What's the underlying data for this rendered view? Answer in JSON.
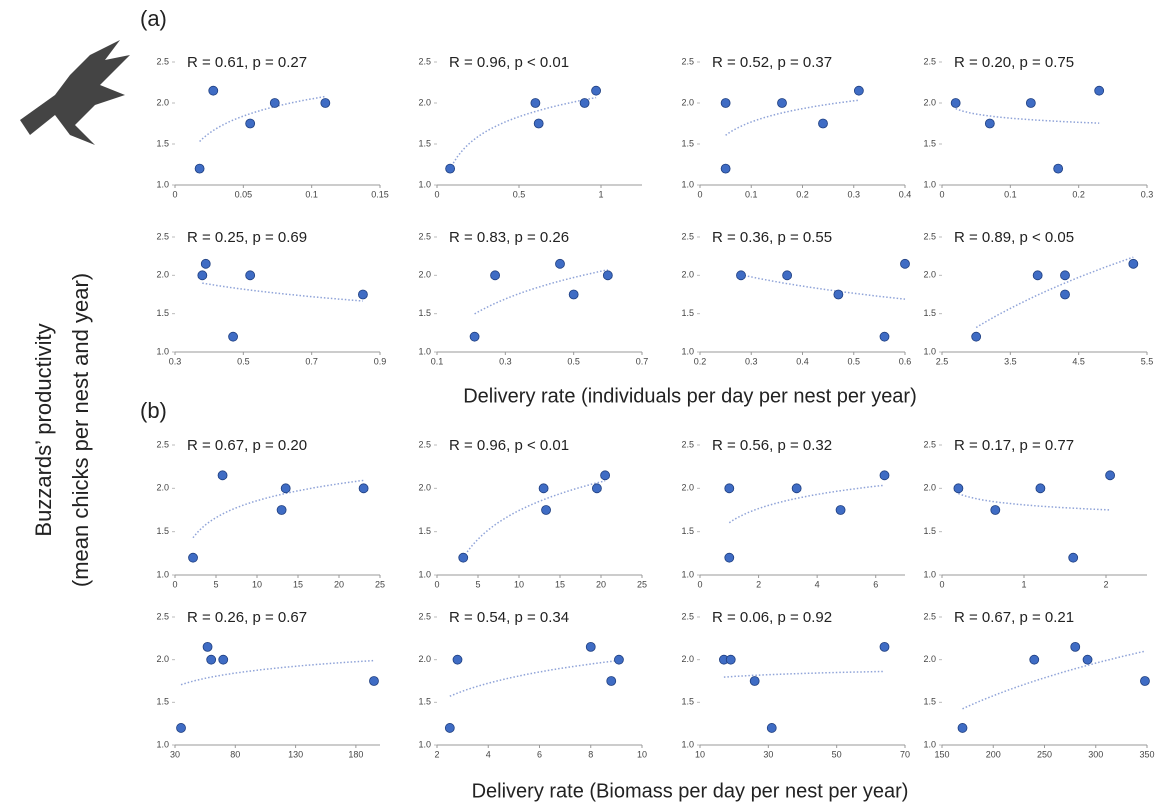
{
  "labels": {
    "panel_a": "(a)",
    "panel_b": "(b)",
    "y_label_1": "Buzzards’ productivity",
    "y_label_2": "(mean chicks per nest and year)",
    "x_label_a": "Delivery rate (individuals per day per nest per year)",
    "x_label_b": "Delivery rate (Biomass per day per nest per year)"
  },
  "chart_data": [
    {
      "type": "scatter",
      "annotation": "R = 0.61, p = 0.27",
      "color": "#3f6cc4",
      "x": [
        0.018,
        0.028,
        0.055,
        0.073,
        0.11
      ],
      "values": [
        1.2,
        2.15,
        1.75,
        2.0,
        2.0
      ],
      "xlim": [
        0,
        0.15
      ],
      "xticks": [
        0,
        0.05,
        0.1,
        0.15
      ],
      "ylim": [
        1,
        2.5
      ],
      "yticks": [
        {
          "value": 1,
          "label": "1.0"
        },
        1.5,
        {
          "value": 2,
          "label": "2.0"
        },
        2.5
      ]
    },
    {
      "type": "scatter",
      "annotation": "R = 0.96, p < 0.01",
      "color": "#3f6cc4",
      "x": [
        0.08,
        0.6,
        0.62,
        0.9,
        0.97
      ],
      "values": [
        1.2,
        2.0,
        1.75,
        2.0,
        2.15
      ],
      "xlim": [
        0,
        1.25
      ],
      "xticks": [
        0,
        0.5,
        1
      ],
      "ylim": [
        1,
        2.5
      ],
      "yticks": [
        {
          "value": 1,
          "label": "1.0"
        },
        1.5,
        {
          "value": 2,
          "label": "2.0"
        },
        2.5
      ]
    },
    {
      "type": "scatter",
      "annotation": "R = 0.52, p = 0.37",
      "color": "#3f6cc4",
      "x": [
        0.05,
        0.05,
        0.16,
        0.24,
        0.31
      ],
      "values": [
        2.0,
        1.2,
        2.0,
        1.75,
        2.15
      ],
      "xlim": [
        0,
        0.4
      ],
      "xticks": [
        0,
        0.1,
        0.2,
        0.3,
        0.4
      ],
      "ylim": [
        1,
        2.5
      ],
      "yticks": [
        {
          "value": 1,
          "label": "1.0"
        },
        1.5,
        {
          "value": 2,
          "label": "2.0"
        },
        2.5
      ]
    },
    {
      "type": "scatter",
      "annotation": "R = 0.20, p = 0.75",
      "color": "#3f6cc4",
      "x": [
        0.02,
        0.07,
        0.13,
        0.17,
        0.23
      ],
      "values": [
        2.0,
        1.75,
        2.0,
        1.2,
        2.15
      ],
      "xlim": [
        0,
        0.3
      ],
      "xticks": [
        0,
        0.1,
        0.2,
        0.3
      ],
      "ylim": [
        1,
        2.5
      ],
      "yticks": [
        {
          "value": 1,
          "label": "1.0"
        },
        1.5,
        {
          "value": 2,
          "label": "2.0"
        },
        2.5
      ]
    },
    {
      "type": "scatter",
      "annotation": "R = 0.25, p = 0.69",
      "color": "#3f6cc4",
      "x": [
        0.38,
        0.39,
        0.47,
        0.52,
        0.85
      ],
      "values": [
        2.0,
        2.15,
        1.2,
        2.0,
        1.75
      ],
      "xlim": [
        0.3,
        0.9
      ],
      "xticks": [
        0.3,
        0.5,
        0.7,
        0.9
      ],
      "ylim": [
        1,
        2.5
      ],
      "yticks": [
        {
          "value": 1,
          "label": "1.0"
        },
        1.5,
        {
          "value": 2,
          "label": "2.0"
        },
        2.5
      ]
    },
    {
      "type": "scatter",
      "annotation": "R = 0.83, p = 0.26",
      "color": "#3f6cc4",
      "x": [
        0.21,
        0.27,
        0.46,
        0.5,
        0.6
      ],
      "values": [
        1.2,
        2.0,
        2.15,
        1.75,
        2.0
      ],
      "xlim": [
        0.1,
        0.7
      ],
      "xticks": [
        0.1,
        0.3,
        0.5,
        0.7
      ],
      "ylim": [
        1,
        2.5
      ],
      "yticks": [
        {
          "value": 1,
          "label": "1.0"
        },
        1.5,
        {
          "value": 2,
          "label": "2.0"
        },
        2.5
      ]
    },
    {
      "type": "scatter",
      "annotation": "R = 0.36, p = 0.55",
      "color": "#3f6cc4",
      "x": [
        0.28,
        0.37,
        0.47,
        0.56,
        0.6
      ],
      "values": [
        2.0,
        2.0,
        1.75,
        1.2,
        2.15
      ],
      "xlim": [
        0.2,
        0.6
      ],
      "xticks": [
        0.2,
        0.3,
        0.4,
        0.5,
        0.6
      ],
      "ylim": [
        1,
        2.5
      ],
      "yticks": [
        {
          "value": 1,
          "label": "1.0"
        },
        1.5,
        {
          "value": 2,
          "label": "2.0"
        },
        2.5
      ]
    },
    {
      "type": "scatter",
      "annotation": "R = 0.89, p < 0.05",
      "color": "#3f6cc4",
      "x": [
        3.0,
        3.9,
        4.3,
        4.3,
        5.3
      ],
      "values": [
        1.2,
        2.0,
        2.0,
        1.75,
        2.15
      ],
      "xlim": [
        2.5,
        5.5
      ],
      "xticks": [
        2.5,
        3.5,
        4.5,
        5.5
      ],
      "ylim": [
        1,
        2.5
      ],
      "yticks": [
        {
          "value": 1,
          "label": "1.0"
        },
        1.5,
        {
          "value": 2,
          "label": "2.0"
        },
        2.5
      ]
    },
    {
      "type": "scatter",
      "annotation": "R = 0.67, p = 0.20",
      "color": "#3f6cc4",
      "x": [
        2.2,
        5.8,
        13,
        13.5,
        23
      ],
      "values": [
        1.2,
        2.15,
        1.75,
        2.0,
        2.0
      ],
      "xlim": [
        0,
        25
      ],
      "xticks": [
        0,
        5,
        10,
        15,
        20,
        25
      ],
      "ylim": [
        1,
        2.5
      ],
      "yticks": [
        {
          "value": 1,
          "label": "1.0"
        },
        1.5,
        {
          "value": 2,
          "label": "2.0"
        },
        2.5
      ]
    },
    {
      "type": "scatter",
      "annotation": "R = 0.96, p < 0.01",
      "color": "#3f6cc4",
      "x": [
        3.2,
        13,
        13.3,
        19.5,
        20.5
      ],
      "values": [
        1.2,
        2.0,
        1.75,
        2.0,
        2.15
      ],
      "xlim": [
        0,
        25
      ],
      "xticks": [
        0,
        5,
        10,
        15,
        20,
        25
      ],
      "ylim": [
        1,
        2.5
      ],
      "yticks": [
        {
          "value": 1,
          "label": "1.0"
        },
        1.5,
        {
          "value": 2,
          "label": "2.0"
        },
        2.5
      ]
    },
    {
      "type": "scatter",
      "annotation": "R = 0.56, p = 0.32",
      "color": "#3f6cc4",
      "x": [
        1,
        1,
        3.3,
        4.8,
        6.3
      ],
      "values": [
        2.0,
        1.2,
        2.0,
        1.75,
        2.15
      ],
      "xlim": [
        0,
        7
      ],
      "xticks": [
        0,
        2,
        4,
        6
      ],
      "ylim": [
        1,
        2.5
      ],
      "yticks": [
        {
          "value": 1,
          "label": "1.0"
        },
        1.5,
        {
          "value": 2,
          "label": "2.0"
        },
        2.5
      ]
    },
    {
      "type": "scatter",
      "annotation": "R = 0.17, p = 0.77",
      "color": "#3f6cc4",
      "x": [
        0.2,
        0.65,
        1.2,
        1.6,
        2.05
      ],
      "values": [
        2.0,
        1.75,
        2.0,
        1.2,
        2.15
      ],
      "xlim": [
        0,
        2.5
      ],
      "xticks": [
        0,
        1,
        2
      ],
      "ylim": [
        1,
        2.5
      ],
      "yticks": [
        {
          "value": 1,
          "label": "1.0"
        },
        1.5,
        {
          "value": 2,
          "label": "2.0"
        },
        2.5
      ]
    },
    {
      "type": "scatter",
      "annotation": "R = 0.26, p = 0.67",
      "color": "#3f6cc4",
      "x": [
        35,
        57,
        60,
        70,
        195
      ],
      "values": [
        1.2,
        2.15,
        2.0,
        2.0,
        1.75
      ],
      "xlim": [
        30,
        200
      ],
      "xticks": [
        30,
        80,
        130,
        180
      ],
      "ylim": [
        1,
        2.5
      ],
      "yticks": [
        {
          "value": 1,
          "label": "1.0"
        },
        1.5,
        {
          "value": 2,
          "label": "2.0"
        },
        2.5
      ]
    },
    {
      "type": "scatter",
      "annotation": "R = 0.54, p = 0.34",
      "color": "#3f6cc4",
      "x": [
        2.5,
        2.8,
        8,
        8.8,
        9.1
      ],
      "values": [
        1.2,
        2.0,
        2.15,
        1.75,
        2.0
      ],
      "xlim": [
        2,
        10
      ],
      "xticks": [
        2,
        4,
        6,
        8,
        10
      ],
      "ylim": [
        1,
        2.5
      ],
      "yticks": [
        {
          "value": 1,
          "label": "1.0"
        },
        1.5,
        {
          "value": 2,
          "label": "2.0"
        },
        2.5
      ]
    },
    {
      "type": "scatter",
      "annotation": "R = 0.06, p = 0.92",
      "color": "#3f6cc4",
      "x": [
        17,
        19,
        26,
        31,
        64
      ],
      "values": [
        2.0,
        2.0,
        1.75,
        1.2,
        2.15
      ],
      "xlim": [
        10,
        70
      ],
      "xticks": [
        10,
        30,
        50,
        70
      ],
      "ylim": [
        1,
        2.5
      ],
      "yticks": [
        {
          "value": 1,
          "label": "1.0"
        },
        1.5,
        {
          "value": 2,
          "label": "2.0"
        },
        2.5
      ]
    },
    {
      "type": "scatter",
      "annotation": "R = 0.67, p = 0.21",
      "color": "#3f6cc4",
      "x": [
        170,
        240,
        280,
        292,
        348
      ],
      "values": [
        1.2,
        2.0,
        2.15,
        2.0,
        1.75
      ],
      "xlim": [
        150,
        350
      ],
      "xticks": [
        150,
        200,
        250,
        300,
        350
      ],
      "ylim": [
        1,
        2.5
      ],
      "yticks": [
        {
          "value": 1,
          "label": "1.0"
        },
        1.5,
        {
          "value": 2,
          "label": "2.0"
        },
        2.5
      ]
    }
  ]
}
